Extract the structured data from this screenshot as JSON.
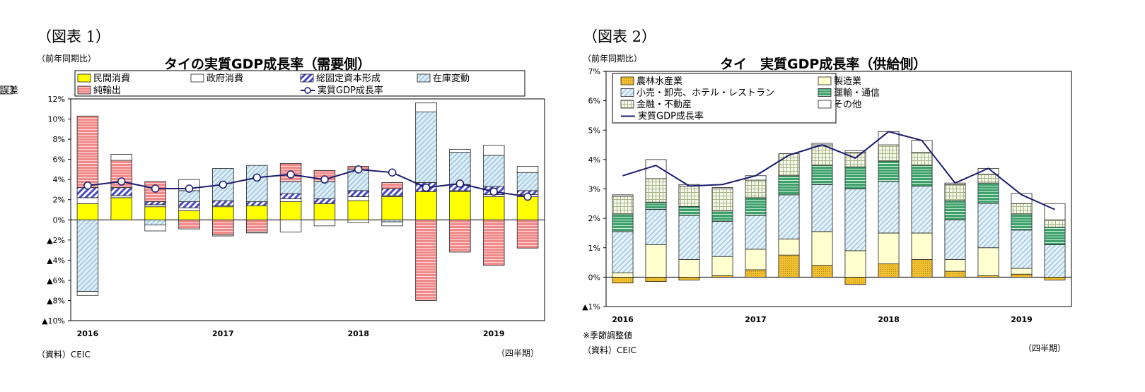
{
  "colors": {
    "private": "#ffff00",
    "gov": "#ffffff",
    "gfcf": "#4848c8",
    "inventory": "#cde6f2",
    "netexports": "#f08a8a",
    "discrepancy": "#ffffff",
    "line": "#1a1a6e",
    "agri": "#f0c030",
    "manuf": "#ffffd0",
    "retail": "#d8ecf6",
    "transport": "#50b080",
    "finance": "#f2f7e2",
    "others": "#ffffff"
  },
  "chart_data": [
    {
      "type": "bar",
      "fig_label": "（図表 1）",
      "title": "タイの実質GDP成長率（需要側）",
      "ylabel": "（前年同期比）",
      "xlabel": "（四半期）",
      "source": "（資料）CEIC",
      "ylim": [
        -10,
        12
      ],
      "yticks": [
        12,
        10,
        8,
        6,
        4,
        2,
        0,
        -2,
        -4,
        -6,
        -8,
        -10
      ],
      "ytick_labels": [
        "12%",
        "10%",
        "8%",
        "6%",
        "4%",
        "2%",
        "0%",
        "▲2%",
        "▲4%",
        "▲6%",
        "▲8%",
        "▲10%"
      ],
      "categories": [
        "2016Q1",
        "2016Q2",
        "2016Q3",
        "2016Q4",
        "2017Q1",
        "2017Q2",
        "2017Q3",
        "2017Q4",
        "2018Q1",
        "2018Q2",
        "2018Q3",
        "2018Q4",
        "2019Q1",
        "2019Q2"
      ],
      "year_labels": [
        {
          "label": "2016",
          "index": 0
        },
        {
          "label": "2017",
          "index": 4
        },
        {
          "label": "2018",
          "index": 8
        },
        {
          "label": "2019",
          "index": 12
        }
      ],
      "series": [
        {
          "name": "民間消費",
          "key": "private",
          "values": [
            1.6,
            2.2,
            1.3,
            0.9,
            1.3,
            1.4,
            1.8,
            1.6,
            1.9,
            2.3,
            2.8,
            2.8,
            2.3,
            2.3
          ]
        },
        {
          "name": "政府消費",
          "key": "gov",
          "values": [
            0.6,
            0.2,
            0.2,
            0.3,
            0.1,
            0.0,
            0.3,
            0.0,
            0.4,
            0.1,
            0.0,
            0.1,
            0.2,
            0.2
          ]
        },
        {
          "name": "総固定資本形成",
          "key": "gfcf",
          "values": [
            1.0,
            0.8,
            0.3,
            0.6,
            0.5,
            0.4,
            0.5,
            0.5,
            0.6,
            0.7,
            0.9,
            0.6,
            0.8,
            0.4
          ]
        },
        {
          "name": "在庫変動",
          "key": "inventory",
          "values": [
            -7.1,
            0.0,
            -0.5,
            1.1,
            3.2,
            3.6,
            1.2,
            1.7,
            2.1,
            -0.2,
            7.0,
            3.2,
            3.1,
            1.8
          ]
        },
        {
          "name": "純輸出",
          "key": "netexports",
          "values": [
            7.1,
            2.7,
            2.0,
            -0.9,
            -1.5,
            -1.2,
            1.8,
            1.1,
            0.3,
            0.6,
            -8.0,
            -3.2,
            -4.5,
            -2.8
          ]
        },
        {
          "name": "誤差",
          "key": "discrepancy",
          "values": [
            -0.4,
            0.6,
            -0.6,
            1.1,
            -0.1,
            -0.1,
            -1.2,
            -0.6,
            -0.3,
            -0.4,
            0.9,
            0.3,
            1.0,
            0.6
          ]
        }
      ],
      "line": {
        "name": "実質GDP成長率",
        "values": [
          3.4,
          3.8,
          3.1,
          3.1,
          3.5,
          4.2,
          4.5,
          4.0,
          5.0,
          4.7,
          3.2,
          3.6,
          2.8,
          2.3
        ]
      }
    },
    {
      "type": "bar",
      "fig_label": "（図表 2）",
      "title": "タイ　実質GDP成長率（供給側）",
      "ylabel": "（前年同期比）",
      "xlabel": "（四半期）",
      "note": "※季節調整値",
      "source": "（資料）CEIC",
      "ylim": [
        -1,
        7
      ],
      "yticks": [
        7,
        6,
        5,
        4,
        3,
        2,
        1,
        0,
        -1
      ],
      "ytick_labels": [
        "7%",
        "6%",
        "5%",
        "4%",
        "3%",
        "2%",
        "1%",
        "0%",
        "▲1%"
      ],
      "categories": [
        "2016Q1",
        "2016Q2",
        "2016Q3",
        "2016Q4",
        "2017Q1",
        "2017Q2",
        "2017Q3",
        "2017Q4",
        "2018Q1",
        "2018Q2",
        "2018Q3",
        "2018Q4",
        "2019Q1",
        "2019Q2"
      ],
      "year_labels": [
        {
          "label": "2016",
          "index": 0
        },
        {
          "label": "2017",
          "index": 4
        },
        {
          "label": "2018",
          "index": 8
        },
        {
          "label": "2019",
          "index": 12
        }
      ],
      "series": [
        {
          "name": "農林水産業",
          "key": "agri",
          "values": [
            -0.2,
            -0.15,
            -0.1,
            0.05,
            0.25,
            0.75,
            0.4,
            -0.25,
            0.45,
            0.6,
            0.2,
            0.05,
            0.1,
            -0.1
          ]
        },
        {
          "name": "製造業",
          "key": "manuf",
          "values": [
            0.15,
            1.1,
            0.6,
            0.65,
            0.7,
            0.55,
            1.15,
            0.9,
            1.05,
            0.9,
            0.4,
            0.95,
            0.2,
            0.0
          ]
        },
        {
          "name": "小売・卸売、ホテル・レストラン",
          "key": "retail",
          "values": [
            1.4,
            1.2,
            1.5,
            1.2,
            1.15,
            1.5,
            1.6,
            2.1,
            1.75,
            1.6,
            1.35,
            1.5,
            1.3,
            1.1
          ]
        },
        {
          "name": "運輸・通信",
          "key": "transport",
          "values": [
            0.6,
            0.25,
            0.3,
            0.35,
            0.6,
            0.65,
            0.65,
            0.75,
            0.7,
            0.7,
            0.65,
            0.7,
            0.55,
            0.6
          ]
        },
        {
          "name": "金融・不動産",
          "key": "finance",
          "values": [
            0.6,
            0.8,
            0.7,
            0.75,
            0.6,
            0.75,
            0.7,
            0.5,
            0.55,
            0.45,
            0.55,
            0.3,
            0.35,
            0.25
          ]
        },
        {
          "name": "その他",
          "key": "others",
          "values": [
            0.05,
            0.65,
            0.05,
            0.05,
            0.15,
            0.0,
            0.05,
            0.05,
            0.45,
            0.4,
            0.05,
            0.2,
            0.35,
            0.55
          ]
        }
      ],
      "line": {
        "name": "実質GDP成長率",
        "values": [
          3.45,
          3.8,
          3.1,
          3.15,
          3.45,
          4.15,
          4.5,
          4.05,
          4.95,
          4.65,
          3.2,
          3.7,
          2.8,
          2.3
        ]
      }
    }
  ]
}
